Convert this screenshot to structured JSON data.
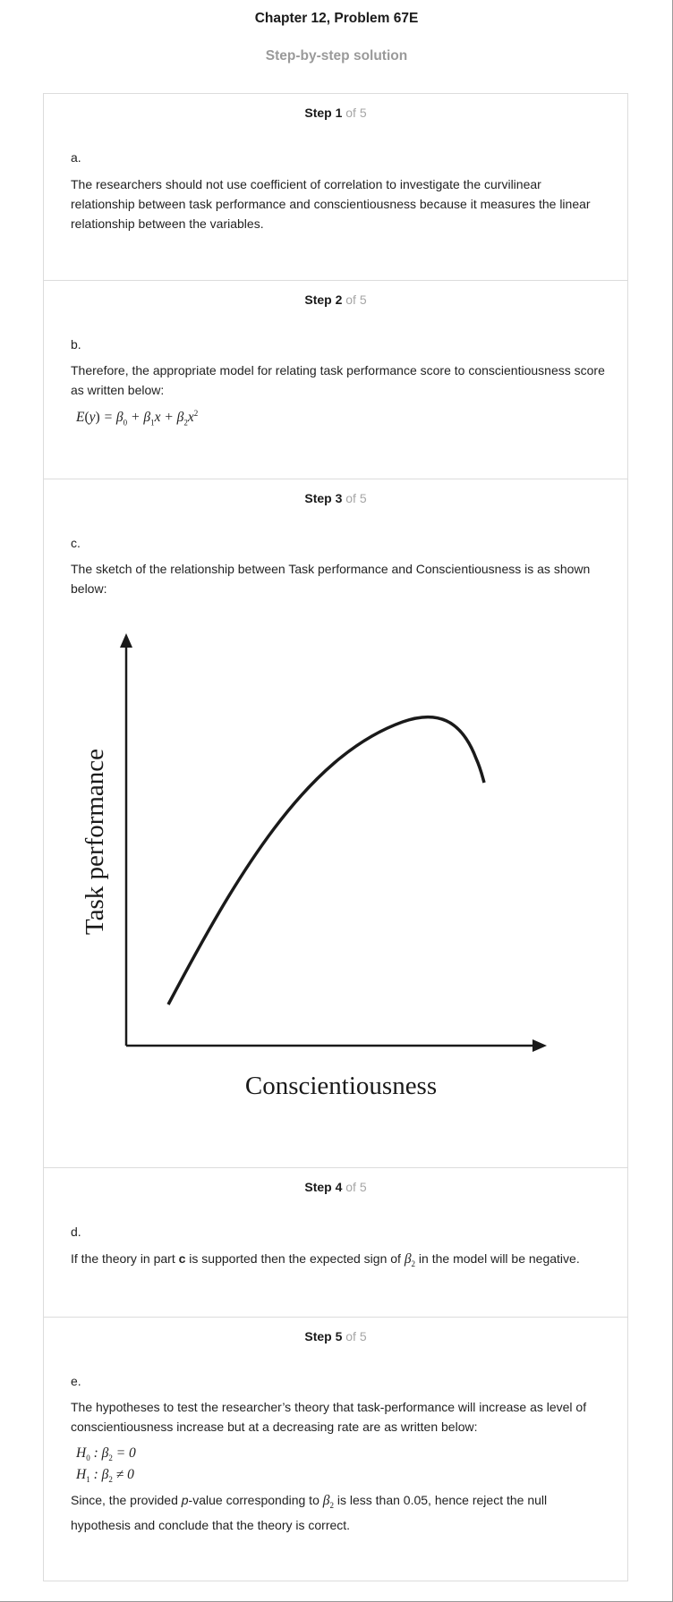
{
  "header": {
    "title": "Chapter 12, Problem 67E",
    "subtitle": "Step-by-step solution"
  },
  "steps": [
    {
      "label": "Step 1",
      "of": "of 5",
      "part": "a.",
      "text": "The researchers should not use coefficient of correlation to investigate the curvilinear relationship between task performance and conscientiousness because it measures the linear relationship between the variables."
    },
    {
      "label": "Step 2",
      "of": "of 5",
      "part": "b.",
      "text": "Therefore, the appropriate model for relating task performance score to conscientiousness score as written below:",
      "equation": "E(y) = β0 + β1x + β2x²"
    },
    {
      "label": "Step 3",
      "of": "of 5",
      "part": "c.",
      "text": "The sketch of the relationship between Task performance and Conscientiousness is as shown below:",
      "figure": {
        "ylabel": "Task performance",
        "xlabel": "Conscientiousness"
      }
    },
    {
      "label": "Step 4",
      "of": "of 5",
      "part": "d.",
      "text_before": "If the theory in part ",
      "bold": "c",
      "text_middle": " is supported then the expected sign of ",
      "symbol": "β2",
      "text_after": " in the model will be negative."
    },
    {
      "label": "Step 5",
      "of": "of 5",
      "part": "e.",
      "text": "The hypotheses to test the researcher’s theory that task-performance will increase as level of conscientiousness increase but at a decreasing rate are as written below:",
      "h0": "H0 : β2 = 0",
      "h1": "H1 : β2 ≠ 0",
      "conclusion_1": "Since, the provided ",
      "conclusion_p": "p",
      "conclusion_2": "-value corresponding to ",
      "conclusion_symbol": "β2",
      "conclusion_3": " is less than 0.05, hence reject the null hypothesis and conclude that the theory is correct."
    }
  ]
}
